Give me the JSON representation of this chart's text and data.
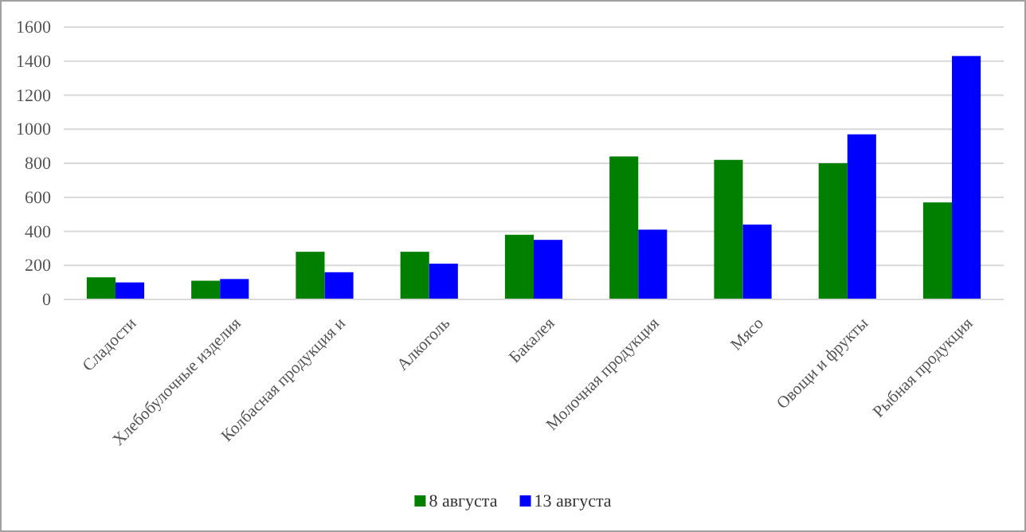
{
  "chart_data": {
    "type": "bar",
    "categories": [
      "Сладости",
      "Хлебобулочные изделия",
      "Колбасная продукция и",
      "Алкоголь",
      "Бакалея",
      "Молочная продукция",
      "Мясо",
      "Овощи и фрукты",
      "Рыбная продукция"
    ],
    "series": [
      {
        "name": "8 августа",
        "color": "#007f00",
        "values": [
          130,
          110,
          280,
          280,
          380,
          840,
          820,
          800,
          570
        ]
      },
      {
        "name": "13 августа",
        "color": "#0000ff",
        "values": [
          100,
          120,
          160,
          210,
          350,
          410,
          440,
          970,
          1430
        ]
      }
    ],
    "ylim": [
      0,
      1600
    ],
    "yticks": [
      0,
      200,
      400,
      600,
      800,
      1000,
      1200,
      1400,
      1600
    ],
    "grid": "y",
    "legend": "bottom"
  }
}
